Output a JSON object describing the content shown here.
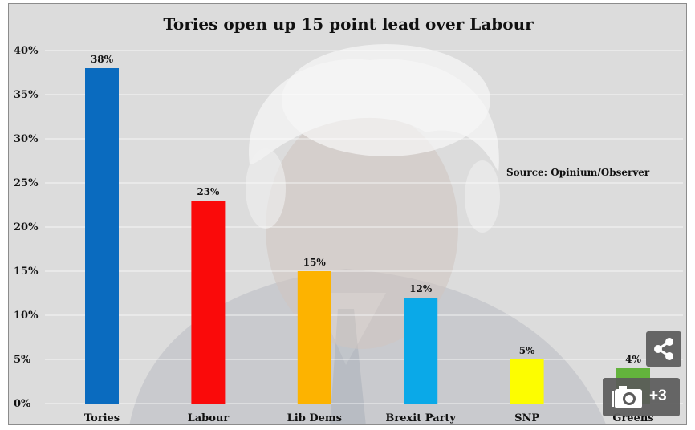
{
  "chart_data": {
    "type": "bar",
    "title": "Tories open up 15 point lead over Labour",
    "annotation": "Source: Opinium/Observer",
    "categories": [
      "Tories",
      "Labour",
      "Lib Dems",
      "Brexit Party",
      "SNP",
      "Greens"
    ],
    "values": [
      38,
      23,
      15,
      12,
      5,
      4
    ],
    "value_labels": [
      "38%",
      "23%",
      "15%",
      "12%",
      "5%",
      "4%"
    ],
    "colors": [
      "#0a6bbf",
      "#fa0a0a",
      "#fdb300",
      "#0aa9e8",
      "#fdfd00",
      "#63b33c"
    ],
    "yticks": [
      0,
      5,
      10,
      15,
      20,
      25,
      30,
      35,
      40
    ],
    "ytick_labels": [
      "0%",
      "5%",
      "10%",
      "15%",
      "20%",
      "25%",
      "30%",
      "35%",
      "40%"
    ],
    "ylim": [
      0,
      40
    ],
    "xlabel": "",
    "ylabel": "",
    "grid": true
  },
  "overlay": {
    "share_icon": "share-icon",
    "gallery_icon": "camera-icon",
    "gallery_count": "+3"
  }
}
